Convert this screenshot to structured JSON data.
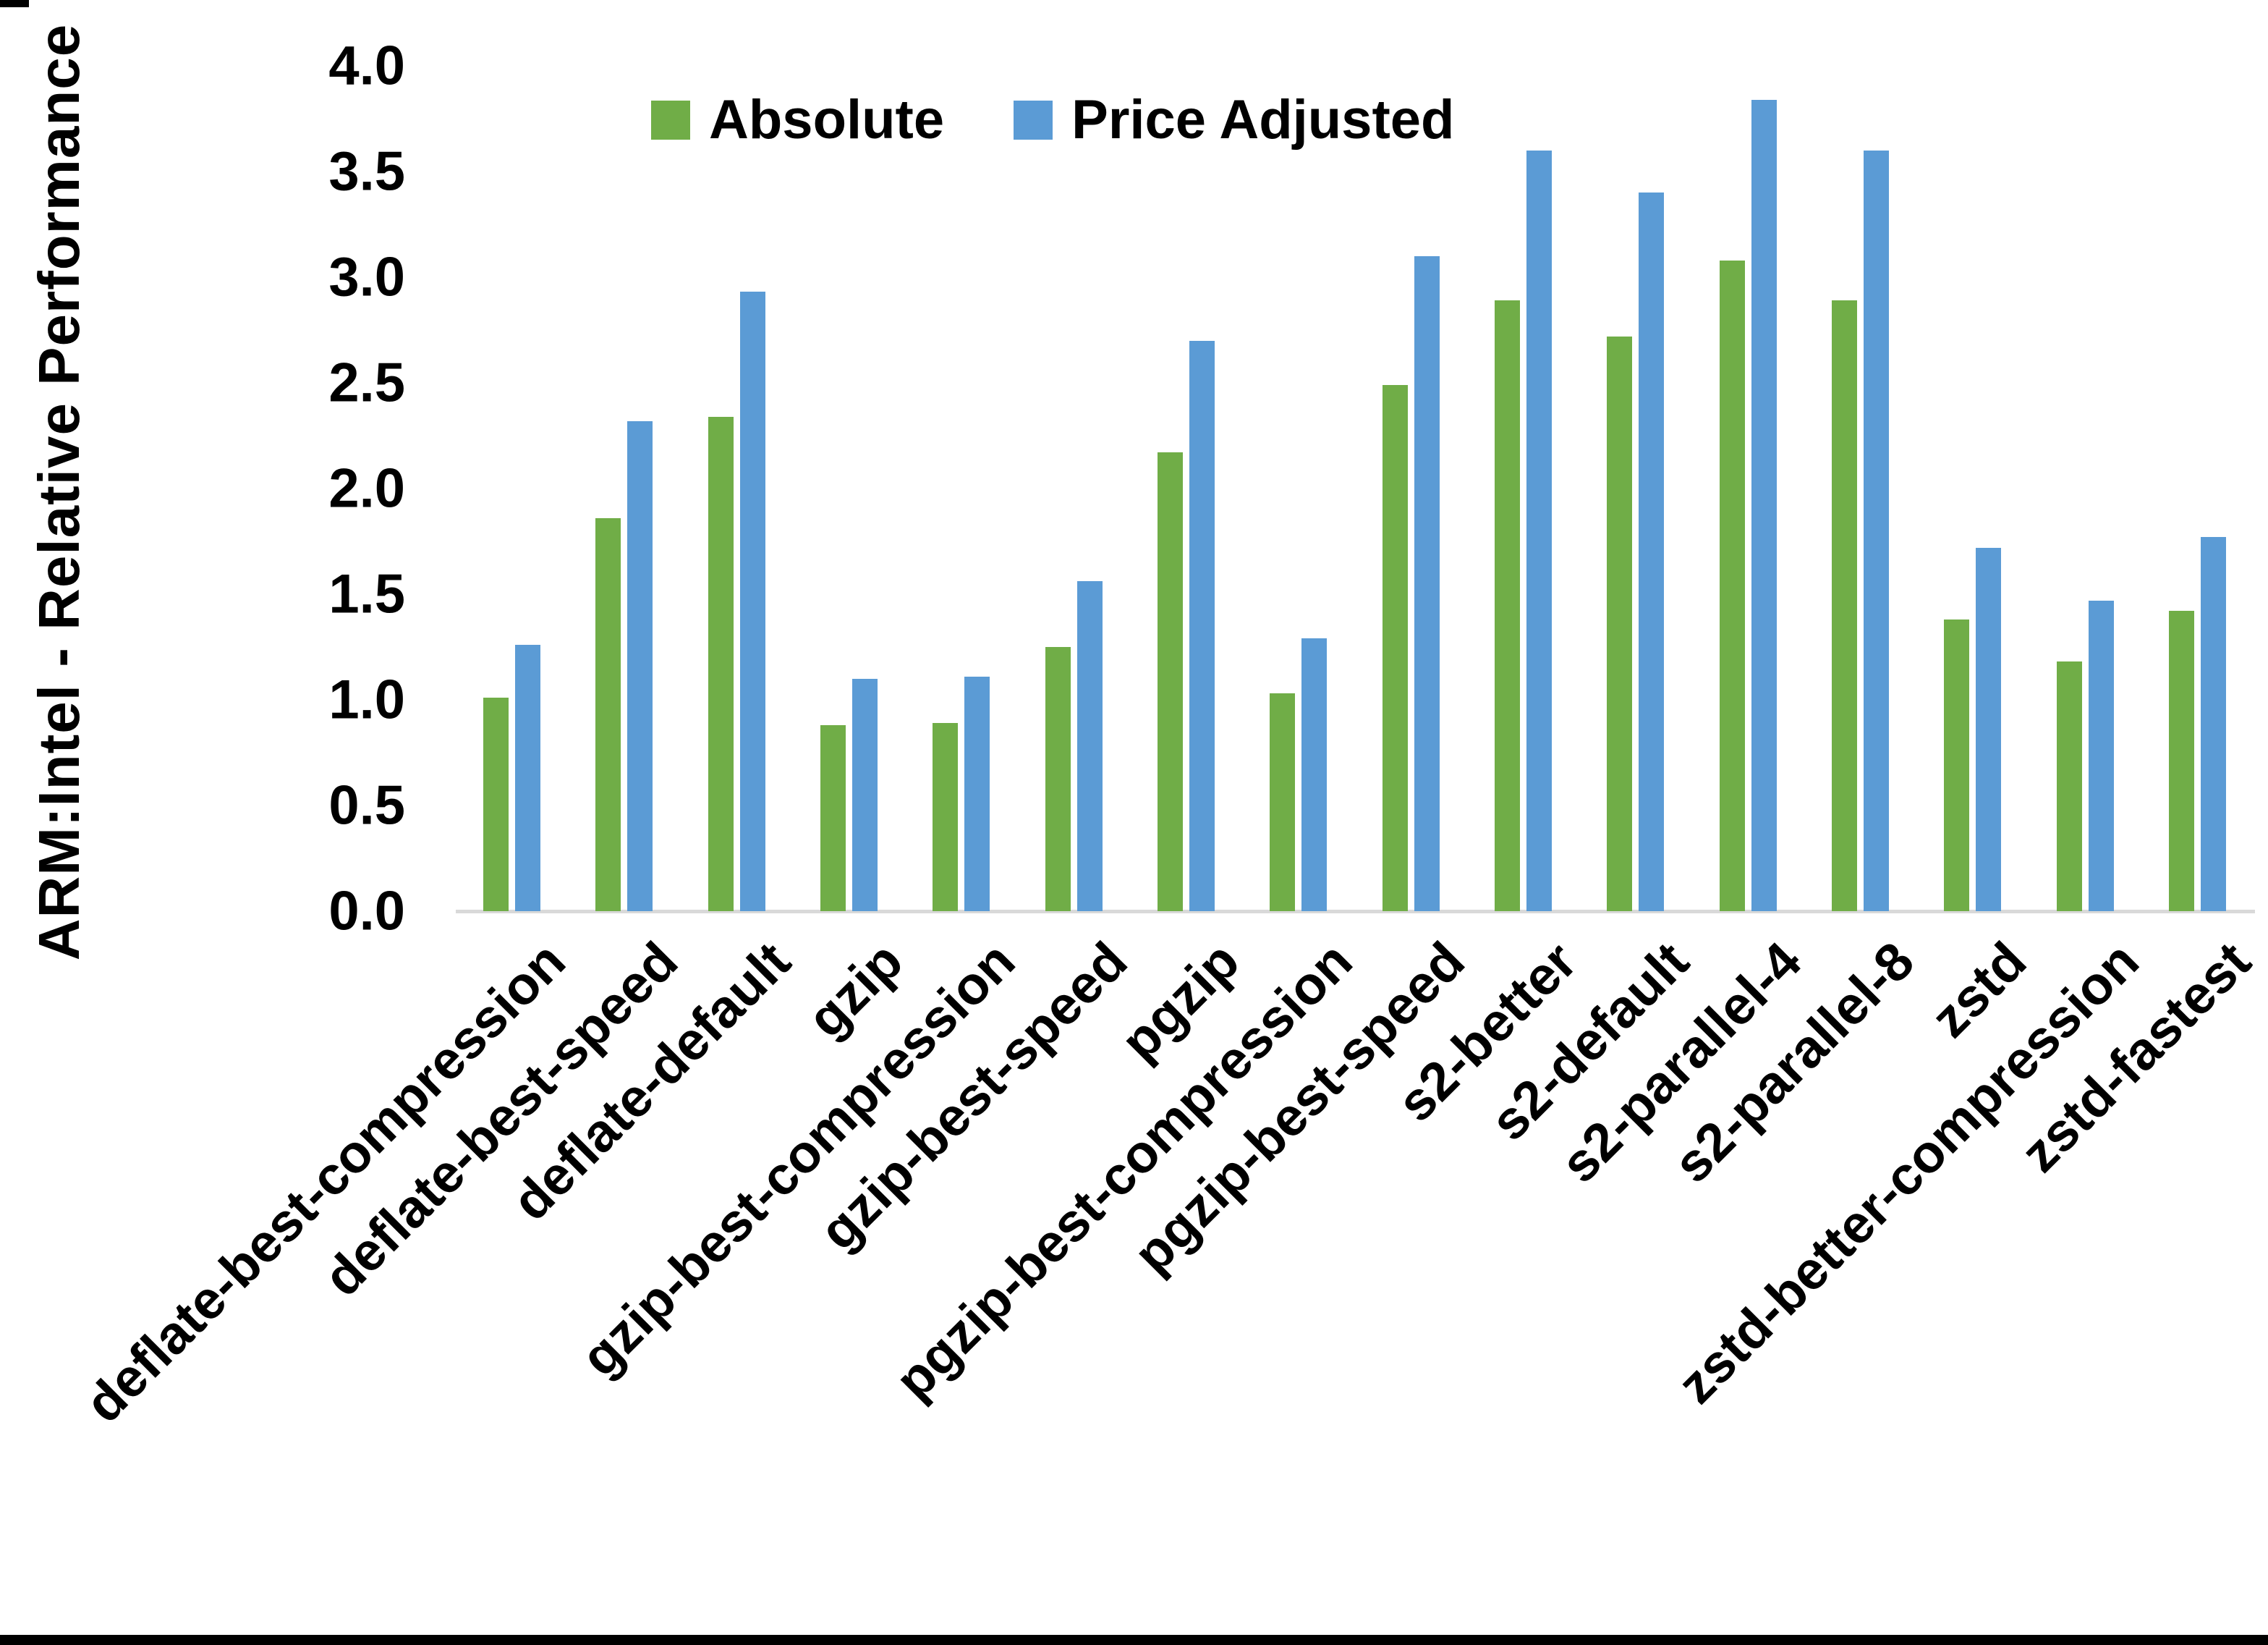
{
  "chart_data": {
    "type": "bar",
    "title": "",
    "xlabel": "",
    "ylabel": "ARM:Intel - Relative Performance",
    "ylim": [
      0.0,
      4.0
    ],
    "ytick_step": 0.5,
    "yticks": [
      "0.0",
      "0.5",
      "1.0",
      "1.5",
      "2.0",
      "2.5",
      "3.0",
      "3.5",
      "4.0"
    ],
    "grid": false,
    "legend_position": "top-center",
    "categories": [
      "deflate-best-compression",
      "deflate-best-speed",
      "deflate-default",
      "gzip",
      "gzip-best-compression",
      "gzip-best-speed",
      "pgzip",
      "pgzip-best-compression",
      "pgzip-best-speed",
      "s2-better",
      "s2-default",
      "s2-parallel-4",
      "s2-parallel-8",
      "zstd",
      "zstd-better-compression",
      "zstd-fastest"
    ],
    "series": [
      {
        "name": "Absolute",
        "color": "#70AD47",
        "values": [
          1.01,
          1.86,
          2.34,
          0.88,
          0.89,
          1.25,
          2.17,
          1.03,
          2.49,
          2.89,
          2.72,
          3.08,
          2.89,
          1.38,
          1.18,
          1.42
        ]
      },
      {
        "name": "Price Adjusted",
        "color": "#5B9BD5",
        "values": [
          1.26,
          2.32,
          2.93,
          1.1,
          1.11,
          1.56,
          2.7,
          1.29,
          3.1,
          3.6,
          3.4,
          3.84,
          3.6,
          1.72,
          1.47,
          1.77
        ]
      }
    ]
  },
  "axis": {
    "baseline_color": "#D9D9D9"
  }
}
